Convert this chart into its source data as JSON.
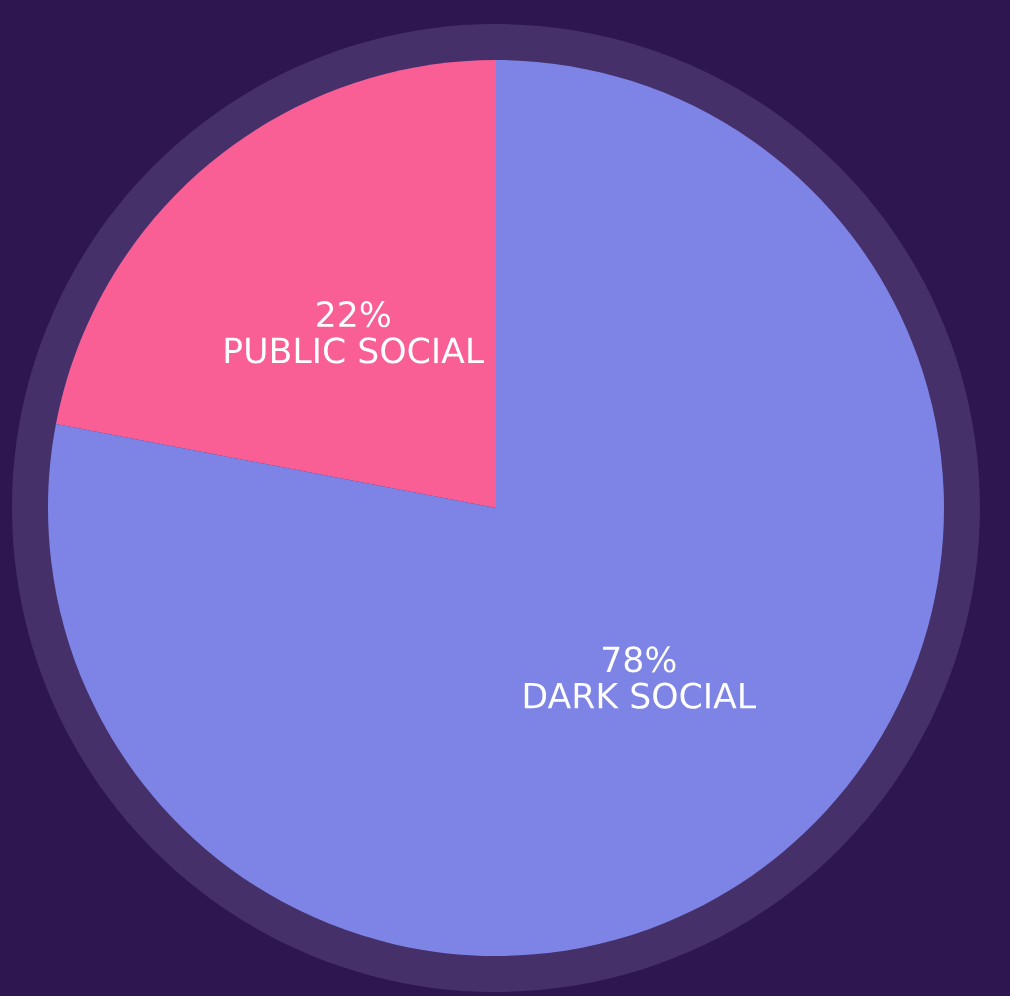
{
  "chart_data": {
    "type": "pie",
    "categories": [
      "PUBLIC SOCIAL",
      "DARK SOCIAL"
    ],
    "values": [
      22,
      78
    ],
    "value_labels": [
      "22%",
      "78%"
    ],
    "colors": [
      "#f95f95",
      "#7d84e6"
    ]
  }
}
